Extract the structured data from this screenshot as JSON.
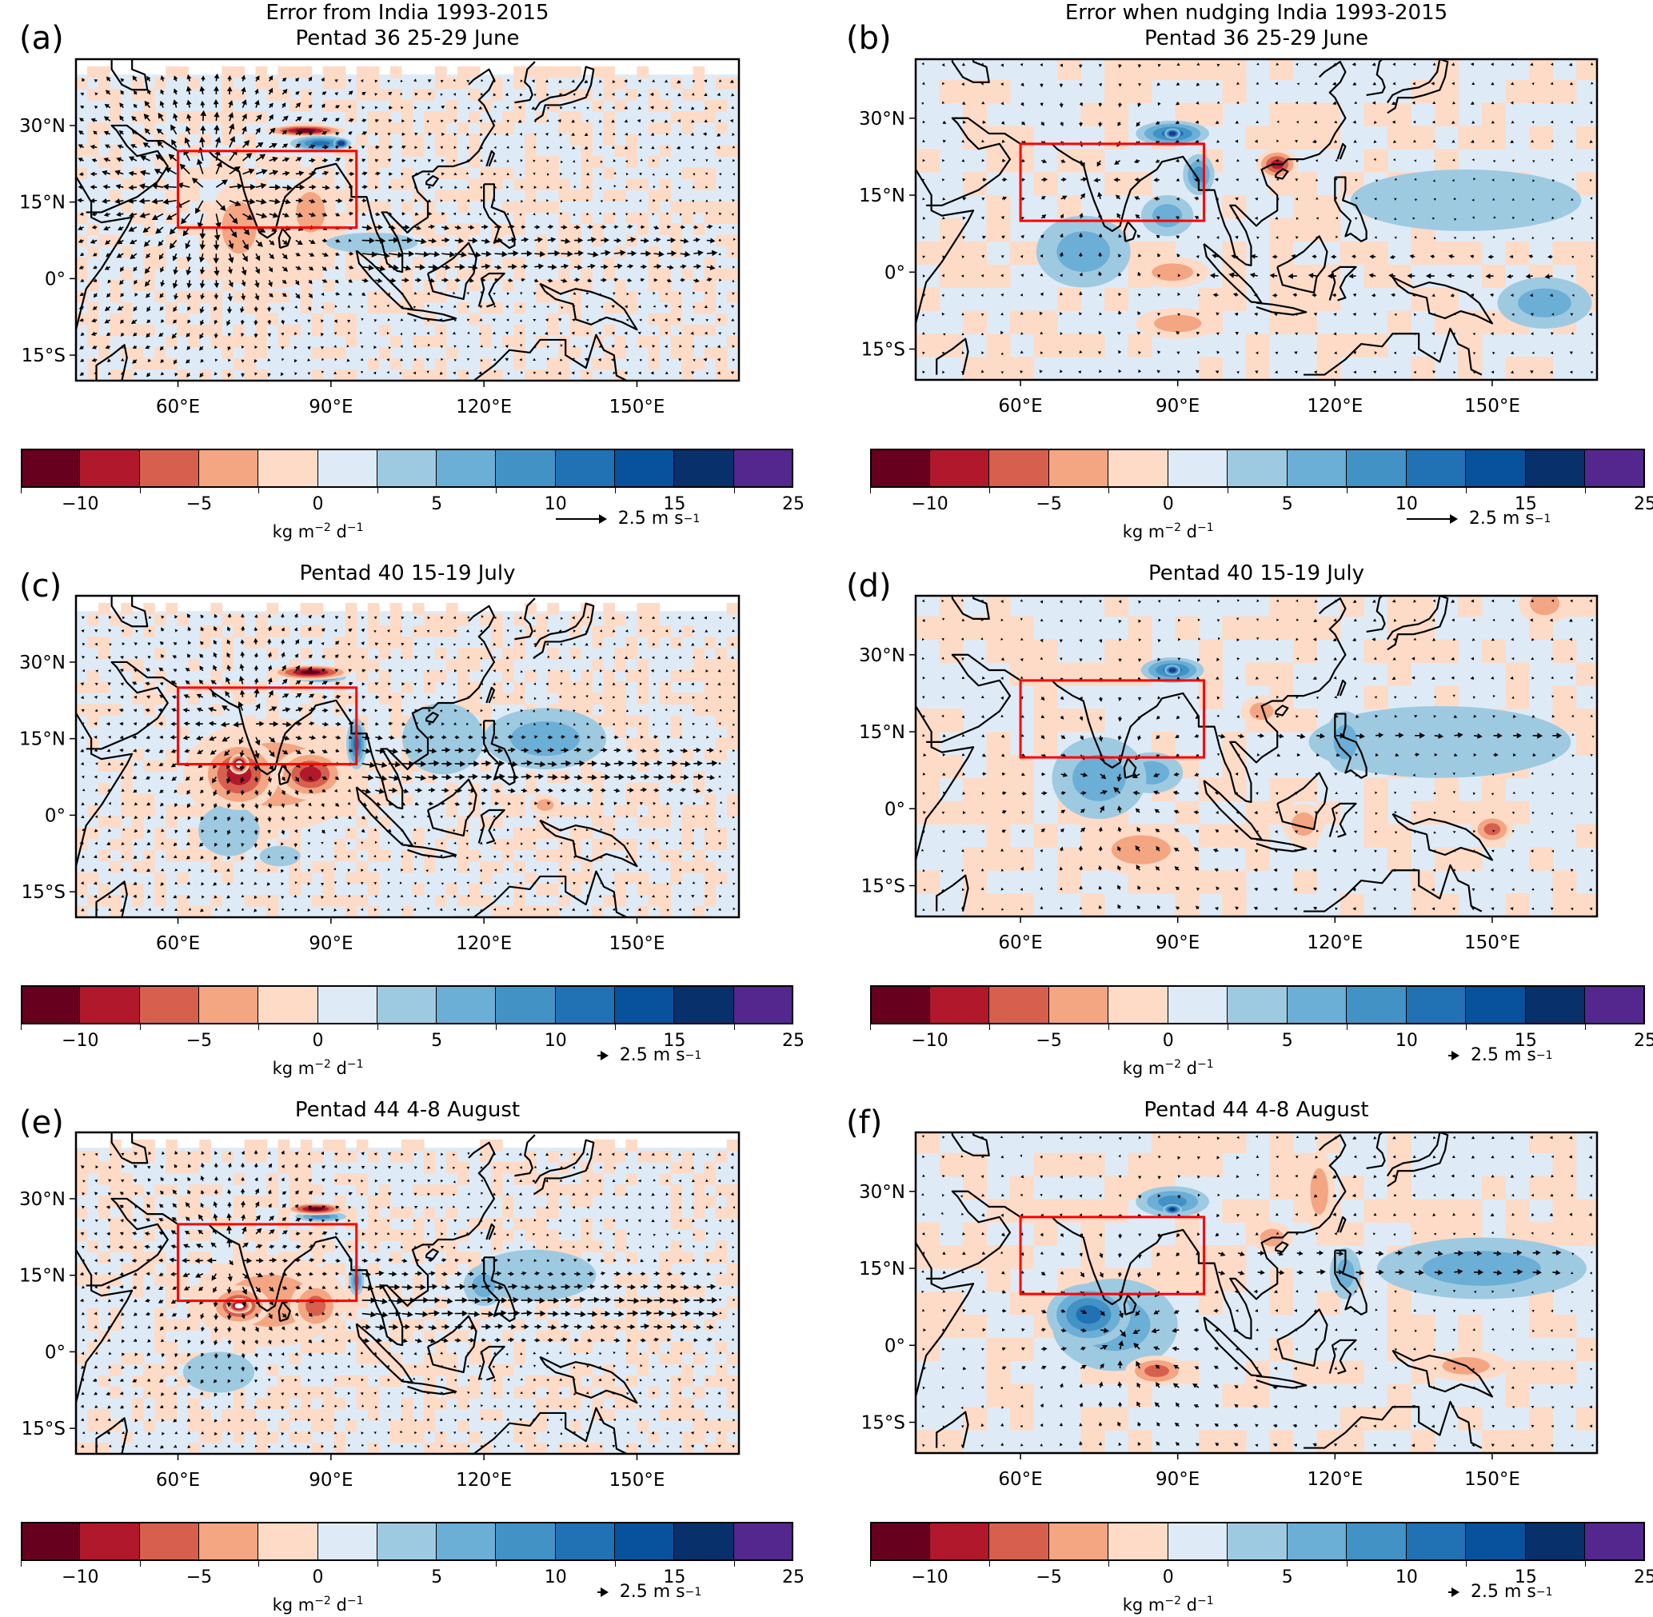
{
  "figure": {
    "colorbar": {
      "levels": [
        -12.5,
        -10,
        -7.5,
        -5,
        -2.5,
        0,
        2.5,
        5,
        7.5,
        10,
        12.5,
        15,
        17.5,
        25
      ],
      "colors": [
        "#67001f",
        "#b2182b",
        "#d6604d",
        "#f4a582",
        "#fddbc7",
        "#deebf7",
        "#9ecae1",
        "#6baed6",
        "#4292c6",
        "#2171b5",
        "#08519c",
        "#08306b",
        "#54278f"
      ],
      "tick_labels": [
        {
          "value": -10,
          "text": "−10"
        },
        {
          "value": -5,
          "text": "−5"
        },
        {
          "value": 0,
          "text": "0"
        },
        {
          "value": 5,
          "text": "5"
        },
        {
          "value": 10,
          "text": "10"
        },
        {
          "value": 15,
          "text": "15"
        },
        {
          "value": 25,
          "text": "25"
        }
      ],
      "units_base": "kg m",
      "units_exp1": "−2",
      "units_mid": " d",
      "units_exp2": "−1"
    },
    "reference_vector": {
      "value": "2.5 m s",
      "exp": "−1"
    },
    "box_color": "#ff0000",
    "box_region": {
      "lon": [
        60,
        95
      ],
      "lat": [
        10,
        25
      ]
    },
    "x_ticks": [
      {
        "value": 60,
        "text": "60°E"
      },
      {
        "value": 90,
        "text": "90°E"
      },
      {
        "value": 120,
        "text": "120°E"
      },
      {
        "value": 150,
        "text": "150°E"
      }
    ],
    "y_ticks": [
      {
        "value": 30,
        "text": "30°N"
      },
      {
        "value": 15,
        "text": "15°N"
      },
      {
        "value": 0,
        "text": "0°"
      },
      {
        "value": -15,
        "text": "15°S"
      }
    ]
  },
  "chart_data": [
    {
      "id": "a",
      "type": "heatmap",
      "letter": "(a)",
      "title_line1": "Error from India 1993-2015",
      "title_line2": "Pentad 36 25-29 June",
      "xlabel": "",
      "ylabel": "",
      "lon_range": [
        40,
        170
      ],
      "lat_range": [
        -20,
        43
      ],
      "data_lat_top": 40,
      "colorbar_label": "kg m-2 d-1",
      "reference_arrow": "2.5 m s-1",
      "anomalies": [
        {
          "lon": 72,
          "lat": 10,
          "rx": 6,
          "ry": 9,
          "value": -5
        },
        {
          "lon": 86,
          "lat": 13,
          "rx": 5,
          "ry": 7,
          "value": -4
        },
        {
          "lon": 78,
          "lat": 8,
          "rx": 14,
          "ry": 10,
          "value": -2
        },
        {
          "lon": 85,
          "lat": 29,
          "rx": 8,
          "ry": 1.2,
          "value": -11
        },
        {
          "lon": 88,
          "lat": 26.5,
          "rx": 6,
          "ry": 1.5,
          "value": 11
        },
        {
          "lon": 92,
          "lat": 26.5,
          "rx": 1.5,
          "ry": 1,
          "value": 20
        },
        {
          "lon": 98,
          "lat": 7,
          "rx": 9,
          "ry": 2,
          "value": 3
        }
      ],
      "wind": {
        "type": "divergent",
        "center": [
          66,
          17
        ],
        "strength": 2.0,
        "east_flow": 1.2,
        "east_lat": [
          -2,
          12
        ]
      }
    },
    {
      "id": "b",
      "type": "heatmap",
      "letter": "(b)",
      "title_line1": "Error when nudging India 1993-2015",
      "title_line2": "Pentad 36 25-29 June",
      "xlabel": "",
      "ylabel": "",
      "lon_range": [
        40,
        170
      ],
      "lat_range": [
        -21,
        41.5
      ],
      "data_lat_top": 41.5,
      "colorbar_label": "kg m-2 d-1",
      "reference_arrow": "2.5 m s-1",
      "anomalies": [
        {
          "lon": 89,
          "lat": 27,
          "rx": 7,
          "ry": 2.5,
          "value": 10
        },
        {
          "lon": 89,
          "lat": 27,
          "rx": 1.5,
          "ry": 1,
          "value": 20
        },
        {
          "lon": 94,
          "lat": 19,
          "rx": 3,
          "ry": 4,
          "value": 8
        },
        {
          "lon": 88,
          "lat": 11,
          "rx": 5,
          "ry": 4,
          "value": 6
        },
        {
          "lon": 72,
          "lat": 4,
          "rx": 9,
          "ry": 7,
          "value": 5
        },
        {
          "lon": 109,
          "lat": 21,
          "rx": 4,
          "ry": 3,
          "value": -10
        },
        {
          "lon": 89,
          "lat": 0,
          "rx": 7,
          "ry": 3,
          "value": -4
        },
        {
          "lon": 145,
          "lat": 14,
          "rx": 22,
          "ry": 6,
          "value": 4
        },
        {
          "lon": 160,
          "lat": -6,
          "rx": 9,
          "ry": 5,
          "value": 5
        },
        {
          "lon": 90,
          "lat": -10,
          "rx": 8,
          "ry": 3,
          "value": -3
        }
      ],
      "wind": {
        "type": "convergent",
        "center": [
          74,
          18
        ],
        "strength": 1.3,
        "east_flow": -1.2,
        "east_lat": [
          -5,
          5
        ]
      }
    },
    {
      "id": "c",
      "type": "heatmap",
      "letter": "(c)",
      "title_line1": "",
      "title_line2": "Pentad 40 15-19 July",
      "xlabel": "",
      "ylabel": "",
      "lon_range": [
        40,
        170
      ],
      "lat_range": [
        -20,
        43
      ],
      "data_lat_top": 40,
      "colorbar_label": "kg m-2 d-1",
      "reference_arrow": "2.5 m s-1",
      "anomalies": [
        {
          "lon": 72,
          "lat": 8,
          "rx": 8,
          "ry": 7,
          "value": -10
        },
        {
          "lon": 72,
          "lat": 10,
          "rx": 2,
          "ry": 2,
          "value": -14
        },
        {
          "lon": 86,
          "lat": 8,
          "rx": 7,
          "ry": 5,
          "value": -9
        },
        {
          "lon": 79,
          "lat": 8,
          "rx": 18,
          "ry": 11,
          "value": -3
        },
        {
          "lon": 86,
          "lat": 28,
          "rx": 8,
          "ry": 1.5,
          "value": -11
        },
        {
          "lon": 88,
          "lat": 27,
          "rx": 5,
          "ry": 1,
          "value": 9
        },
        {
          "lon": 95,
          "lat": 14,
          "rx": 2,
          "ry": 5,
          "value": 10
        },
        {
          "lon": 132,
          "lat": 15,
          "rx": 12,
          "ry": 6,
          "value": 5
        },
        {
          "lon": 112,
          "lat": 15,
          "rx": 8,
          "ry": 7,
          "value": 3
        },
        {
          "lon": 70,
          "lat": -3,
          "rx": 6,
          "ry": 5,
          "value": 4
        },
        {
          "lon": 80,
          "lat": -8,
          "rx": 4,
          "ry": 2,
          "value": 4
        },
        {
          "lon": 132,
          "lat": 2,
          "rx": 3,
          "ry": 2,
          "value": -4
        }
      ],
      "wind": {
        "type": "divergent",
        "center": [
          74,
          18
        ],
        "strength": 1.6,
        "east_flow": 1.6,
        "east_lat": [
          2,
          16
        ]
      }
    },
    {
      "id": "d",
      "type": "heatmap",
      "letter": "(d)",
      "title_line1": "",
      "title_line2": "Pentad 40 15-19 July",
      "xlabel": "",
      "ylabel": "",
      "lon_range": [
        40,
        170
      ],
      "lat_range": [
        -21,
        41.5
      ],
      "data_lat_top": 41.5,
      "colorbar_label": "kg m-2 d-1",
      "reference_arrow": "2.5 m s-1",
      "anomalies": [
        {
          "lon": 89,
          "lat": 27,
          "rx": 6,
          "ry": 2.5,
          "value": 10
        },
        {
          "lon": 89,
          "lat": 27,
          "rx": 1.5,
          "ry": 1,
          "value": 18
        },
        {
          "lon": 75,
          "lat": 6,
          "rx": 9,
          "ry": 8,
          "value": 7
        },
        {
          "lon": 85,
          "lat": 7,
          "rx": 6,
          "ry": 4,
          "value": 5
        },
        {
          "lon": 140,
          "lat": 13,
          "rx": 25,
          "ry": 7,
          "value": 4
        },
        {
          "lon": 122,
          "lat": 13,
          "rx": 4,
          "ry": 6,
          "value": 6
        },
        {
          "lon": 83,
          "lat": -8,
          "rx": 10,
          "ry": 5,
          "value": -4
        },
        {
          "lon": 150,
          "lat": -4,
          "rx": 4,
          "ry": 3,
          "value": -7
        },
        {
          "lon": 106,
          "lat": 19,
          "rx": 4,
          "ry": 3,
          "value": -5
        },
        {
          "lon": 160,
          "lat": 40,
          "rx": 5,
          "ry": 4,
          "value": -5
        },
        {
          "lon": 114,
          "lat": -3,
          "rx": 4,
          "ry": 4,
          "value": -4
        }
      ],
      "wind": {
        "type": "convergent",
        "center": [
          78,
          4
        ],
        "strength": 1.4,
        "east_flow": 1.5,
        "east_lat": [
          10,
          18
        ]
      }
    },
    {
      "id": "e",
      "type": "heatmap",
      "letter": "(e)",
      "title_line1": "",
      "title_line2": "Pentad 44 4-8 August",
      "xlabel": "",
      "ylabel": "",
      "lon_range": [
        40,
        170
      ],
      "lat_range": [
        -20,
        43
      ],
      "data_lat_top": 40,
      "colorbar_label": "kg m-2 d-1",
      "reference_arrow": "2.5 m s-1",
      "anomalies": [
        {
          "lon": 72,
          "lat": 9,
          "rx": 6,
          "ry": 4,
          "value": -10
        },
        {
          "lon": 72,
          "lat": 9,
          "rx": 2.5,
          "ry": 1.5,
          "value": -14
        },
        {
          "lon": 87,
          "lat": 9,
          "rx": 5,
          "ry": 5,
          "value": -6
        },
        {
          "lon": 78,
          "lat": 10,
          "rx": 15,
          "ry": 9,
          "value": -3
        },
        {
          "lon": 87,
          "lat": 28,
          "rx": 6,
          "ry": 1.2,
          "value": -11
        },
        {
          "lon": 88,
          "lat": 26.5,
          "rx": 5,
          "ry": 1,
          "value": 8
        },
        {
          "lon": 95,
          "lat": 14,
          "rx": 1.5,
          "ry": 3,
          "value": 8
        },
        {
          "lon": 130,
          "lat": 15,
          "rx": 12,
          "ry": 5,
          "value": 4
        },
        {
          "lon": 120,
          "lat": 13,
          "rx": 4,
          "ry": 4,
          "value": 6
        },
        {
          "lon": 68,
          "lat": -4,
          "rx": 7,
          "ry": 4,
          "value": 4
        }
      ],
      "wind": {
        "type": "divergent",
        "center": [
          70,
          18
        ],
        "strength": 1.5,
        "east_flow": 1.8,
        "east_lat": [
          0,
          18
        ]
      }
    },
    {
      "id": "f",
      "type": "heatmap",
      "letter": "(f)",
      "title_line1": "",
      "title_line2": "Pentad 44 4-8 August",
      "xlabel": "",
      "ylabel": "",
      "lon_range": [
        40,
        170
      ],
      "lat_range": [
        -21,
        41.5
      ],
      "data_lat_top": 41.5,
      "colorbar_label": "kg m-2 d-1",
      "reference_arrow": "2.5 m s-1",
      "anomalies": [
        {
          "lon": 89,
          "lat": 28,
          "rx": 7,
          "ry": 3,
          "value": 9
        },
        {
          "lon": 89,
          "lat": 26.5,
          "rx": 1.8,
          "ry": 1,
          "value": 15
        },
        {
          "lon": 73,
          "lat": 6,
          "rx": 8,
          "ry": 6,
          "value": 11
        },
        {
          "lon": 78,
          "lat": 4,
          "rx": 12,
          "ry": 9,
          "value": 5
        },
        {
          "lon": 148,
          "lat": 15,
          "rx": 20,
          "ry": 6,
          "value": 6
        },
        {
          "lon": 122,
          "lat": 14,
          "rx": 3,
          "ry": 5,
          "value": 5
        },
        {
          "lon": 86,
          "lat": -5,
          "rx": 6,
          "ry": 3,
          "value": -7
        },
        {
          "lon": 117,
          "lat": 30,
          "rx": 3,
          "ry": 8,
          "value": -4
        },
        {
          "lon": 108,
          "lat": 21,
          "rx": 4,
          "ry": 3,
          "value": -5
        },
        {
          "lon": 145,
          "lat": -4,
          "rx": 8,
          "ry": 3,
          "value": -4
        }
      ],
      "wind": {
        "type": "convergent",
        "center": [
          80,
          2
        ],
        "strength": 1.5,
        "east_flow": 2.0,
        "east_lat": [
          12,
          20
        ]
      }
    }
  ]
}
